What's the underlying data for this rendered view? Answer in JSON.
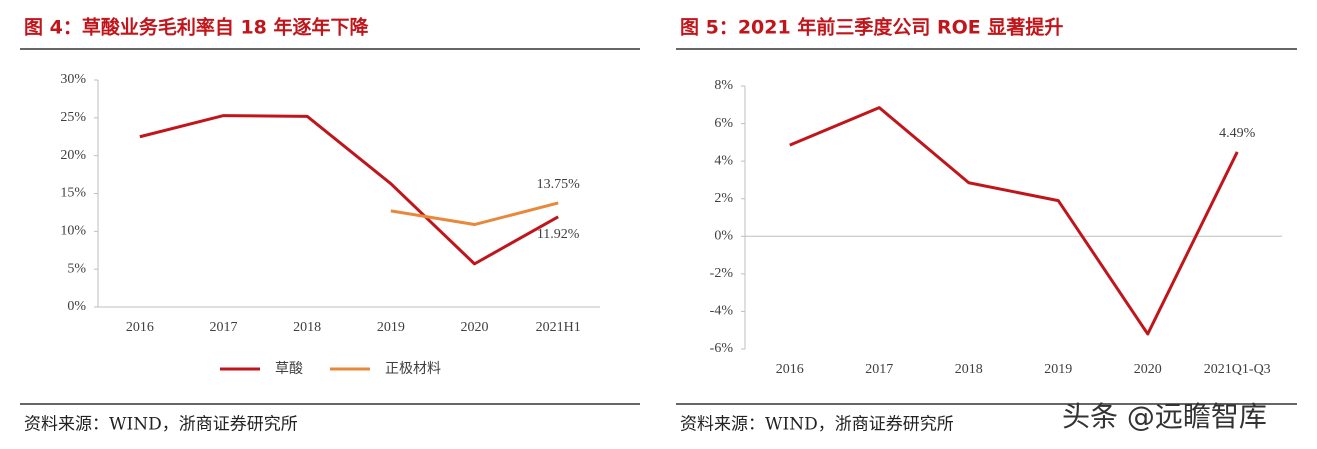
{
  "chart_data": [
    {
      "type": "line",
      "title": "图 4：草酸业务毛利率自 18 年逐年下降",
      "categories": [
        "2016",
        "2017",
        "2018",
        "2019",
        "2020",
        "2021H1"
      ],
      "series": [
        {
          "name": "草酸",
          "color": "#c0161b",
          "values": [
            22.5,
            25.3,
            25.2,
            16.3,
            5.7,
            11.92
          ],
          "value_labels": [
            null,
            null,
            null,
            null,
            null,
            "11.92%"
          ]
        },
        {
          "name": "正极材料",
          "color": "#e8883a",
          "values": [
            null,
            null,
            null,
            12.7,
            10.9,
            13.75
          ],
          "value_labels": [
            null,
            null,
            null,
            null,
            null,
            "13.75%"
          ]
        }
      ],
      "ylim": [
        0,
        30
      ],
      "yticks": [
        {
          "value": 0,
          "label": "0%"
        },
        {
          "value": 5,
          "label": "5%"
        },
        {
          "value": 10,
          "label": "10%"
        },
        {
          "value": 15,
          "label": "15%"
        },
        {
          "value": 20,
          "label": "20%"
        },
        {
          "value": 25,
          "label": "25%"
        },
        {
          "value": 30,
          "label": "30%"
        }
      ],
      "grid": false,
      "legend": "bottom",
      "source": "资料来源：WIND，浙商证券研究所"
    },
    {
      "type": "line",
      "title": "图 5：2021 年前三季度公司 ROE 显著提升",
      "categories": [
        "2016",
        "2017",
        "2018",
        "2019",
        "2020",
        "2021Q1-Q3"
      ],
      "series": [
        {
          "name": "ROE",
          "color": "#c0161b",
          "values": [
            4.85,
            6.85,
            2.85,
            1.9,
            -5.2,
            4.49
          ],
          "value_labels": [
            null,
            null,
            null,
            null,
            null,
            "4.49%"
          ]
        }
      ],
      "ylim": [
        -6,
        8
      ],
      "yticks": [
        {
          "value": -6,
          "label": "-6%"
        },
        {
          "value": -4,
          "label": "-4%"
        },
        {
          "value": -2,
          "label": "-2%"
        },
        {
          "value": 0,
          "label": "0%"
        },
        {
          "value": 2,
          "label": "2%"
        },
        {
          "value": 4,
          "label": "4%"
        },
        {
          "value": 6,
          "label": "6%"
        },
        {
          "value": 8,
          "label": "8%"
        }
      ],
      "grid": false,
      "legend": "none",
      "source": "资料来源：WIND，浙商证券研究所"
    }
  ],
  "watermark": "头条 @远瞻智库"
}
